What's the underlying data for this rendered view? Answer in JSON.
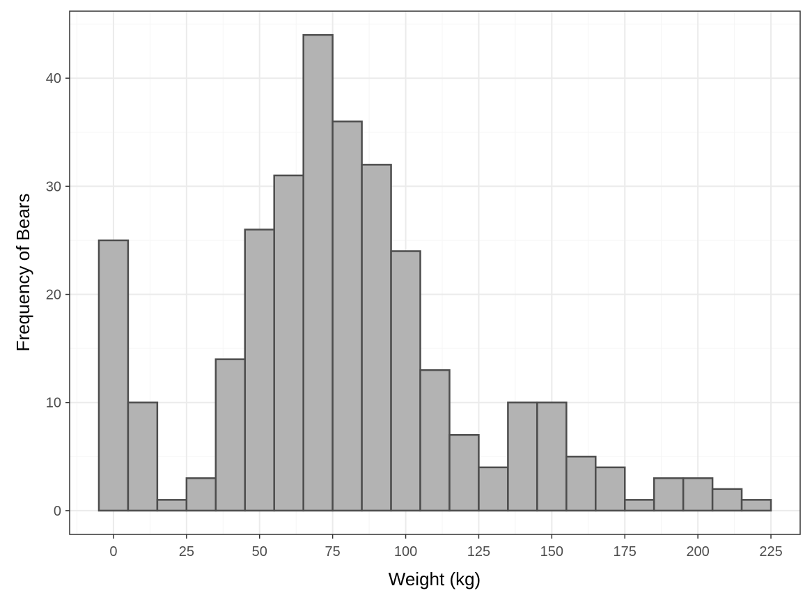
{
  "chart_data": {
    "type": "bar",
    "subtype": "histogram",
    "xlabel": "Weight (kg)",
    "ylabel": "Frequency of Bears",
    "xlim": [
      -15,
      235
    ],
    "ylim": [
      -2.2,
      46.2
    ],
    "x_ticks": [
      0,
      25,
      50,
      75,
      100,
      125,
      150,
      175,
      200,
      225
    ],
    "y_ticks": [
      0,
      10,
      20,
      30,
      40
    ],
    "bin_width": 10,
    "bins": [
      {
        "center": 0,
        "count": 25
      },
      {
        "center": 10,
        "count": 10
      },
      {
        "center": 20,
        "count": 1
      },
      {
        "center": 30,
        "count": 3
      },
      {
        "center": 40,
        "count": 14
      },
      {
        "center": 50,
        "count": 26
      },
      {
        "center": 60,
        "count": 31
      },
      {
        "center": 70,
        "count": 44
      },
      {
        "center": 80,
        "count": 36
      },
      {
        "center": 90,
        "count": 32
      },
      {
        "center": 100,
        "count": 24
      },
      {
        "center": 110,
        "count": 13
      },
      {
        "center": 120,
        "count": 7
      },
      {
        "center": 130,
        "count": 4
      },
      {
        "center": 140,
        "count": 10
      },
      {
        "center": 150,
        "count": 10
      },
      {
        "center": 160,
        "count": 5
      },
      {
        "center": 170,
        "count": 4
      },
      {
        "center": 180,
        "count": 1
      },
      {
        "center": 190,
        "count": 3
      },
      {
        "center": 200,
        "count": 3
      },
      {
        "center": 210,
        "count": 2
      },
      {
        "center": 220,
        "count": 1
      }
    ],
    "grid": true,
    "colors": {
      "bar_fill": "#b3b3b3",
      "bar_stroke": "#4d4d4d",
      "grid_major": "#ebebeb",
      "grid_minor": "#f5f5f5",
      "panel_border": "#333333"
    }
  }
}
